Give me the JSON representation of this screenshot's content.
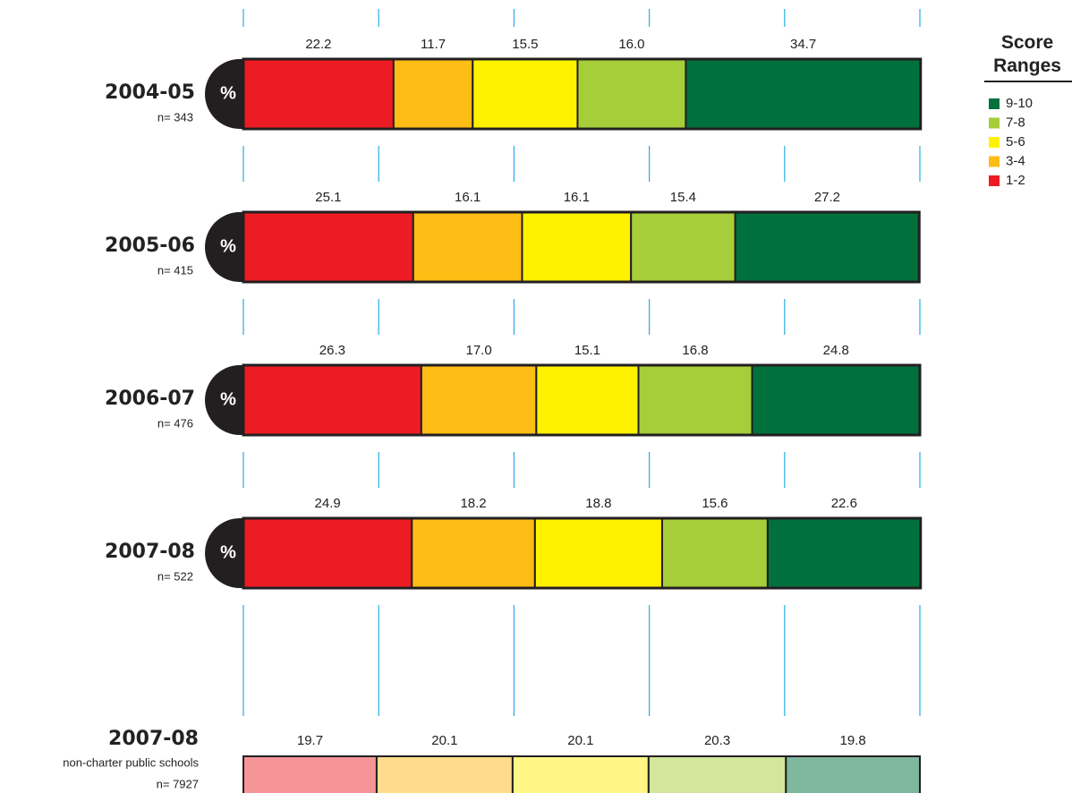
{
  "chart_data": [
    {
      "type": "stacked-bar",
      "categories": [
        "2004-05",
        "2005-06",
        "2006-07",
        "2007-08"
      ],
      "n_labels": [
        "n= 343",
        "n= 415",
        "n= 476",
        "n= 522"
      ],
      "unit_badge": "%",
      "legend_title": "Score Ranges",
      "legend": "top-right",
      "grid": true,
      "xlim": [
        0,
        100
      ],
      "xticks": [
        0,
        20,
        40,
        60,
        80,
        100
      ],
      "series": [
        {
          "name": "1-2",
          "color": "#ed1c24",
          "values": [
            22.2,
            25.1,
            26.3,
            24.9
          ]
        },
        {
          "name": "3-4",
          "color": "#fdbd14",
          "values": [
            11.7,
            16.1,
            17.0,
            18.2
          ],
          "value_labels": [
            "11.7",
            "16.1",
            "17.0",
            "18.2"
          ]
        },
        {
          "name": "5-6",
          "color": "#fff200",
          "values": [
            15.5,
            16.1,
            15.1,
            18.8
          ]
        },
        {
          "name": "7-8",
          "color": "#a6ce39",
          "values": [
            16.0,
            15.4,
            16.8,
            15.6
          ],
          "value_labels": [
            "16.0",
            "15.4",
            "16.8",
            "15.6"
          ]
        },
        {
          "name": "9-10",
          "color": "#00703c",
          "values": [
            34.7,
            27.2,
            24.8,
            22.6
          ]
        }
      ]
    },
    {
      "type": "stacked-bar",
      "categories": [
        "2007-08"
      ],
      "sublabels": [
        "non-charter public schools"
      ],
      "n_labels": [
        "n= 7927"
      ],
      "xlim": [
        0,
        100
      ],
      "series": [
        {
          "name": "1-2",
          "color": "#f59597",
          "values": [
            19.7
          ]
        },
        {
          "name": "3-4",
          "color": "#fedc8c",
          "values": [
            20.1
          ]
        },
        {
          "name": "5-6",
          "color": "#fff685",
          "values": [
            20.1
          ]
        },
        {
          "name": "7-8",
          "color": "#d3e79c",
          "values": [
            20.3
          ]
        },
        {
          "name": "9-10",
          "color": "#80b89e",
          "values": [
            19.8
          ]
        }
      ]
    }
  ]
}
